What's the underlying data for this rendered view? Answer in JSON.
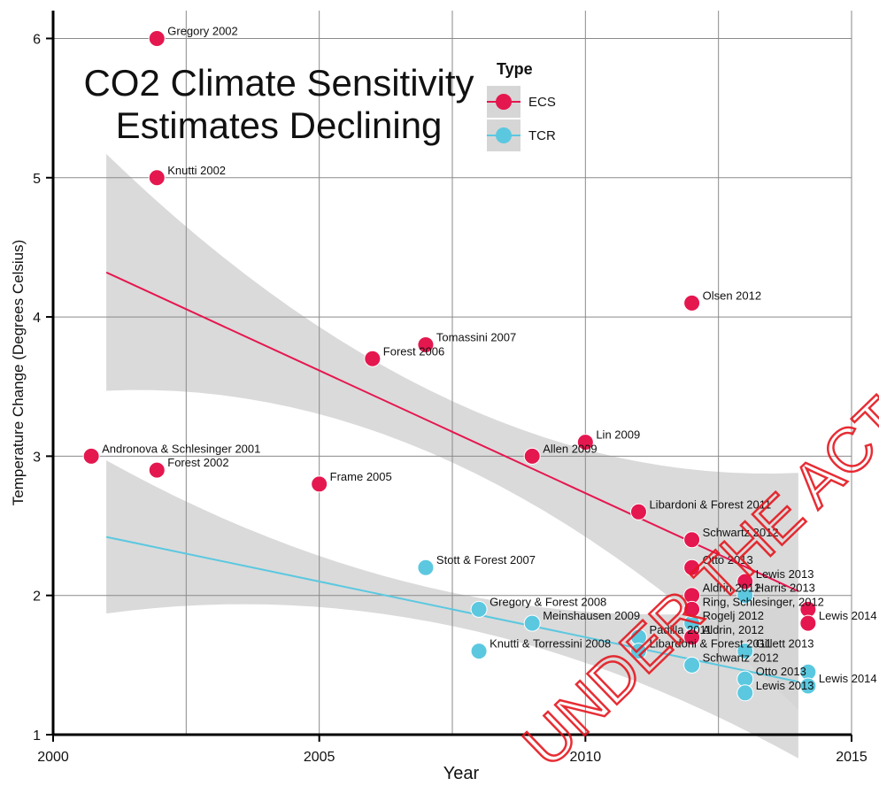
{
  "chart_data": {
    "type": "scatter",
    "title": "CO2 Climate Sensitivity Estimates Declining",
    "title_lines": [
      "CO2 Climate Sensitivity",
      "Estimates Declining"
    ],
    "xlabel": "Year",
    "ylabel": "Temperature Change (Degrees Celsius)",
    "xlim": [
      2000,
      2015
    ],
    "ylim": [
      1,
      6.2
    ],
    "xticks": [
      2000,
      2005,
      2010,
      2015
    ],
    "yticks": [
      1,
      2,
      3,
      4,
      5,
      6
    ],
    "x_gridlines": [
      2002.5,
      2007.5,
      2012.5
    ],
    "grid": true,
    "legend": {
      "title": "Type",
      "placement": "top-center"
    },
    "colors": {
      "ECS": "#e5174f",
      "TCR": "#5bc8e0",
      "band": "#d3d3d3"
    },
    "series": [
      {
        "name": "ECS",
        "points": [
          {
            "x": 2002,
            "y": 6.0,
            "label": "Gregory 2002"
          },
          {
            "x": 2002,
            "y": 5.0,
            "label": "Knutti 2002"
          },
          {
            "x": 2001,
            "y": 3.0,
            "label": "Andronova & Schlesinger 2001"
          },
          {
            "x": 2002,
            "y": 2.9,
            "label": "Forest 2002"
          },
          {
            "x": 2005,
            "y": 2.8,
            "label": "Frame 2005"
          },
          {
            "x": 2006,
            "y": 3.7,
            "label": "Forest 2006"
          },
          {
            "x": 2007,
            "y": 3.8,
            "label": "Tomassini 2007"
          },
          {
            "x": 2009,
            "y": 3.0,
            "label": "Allen 2009"
          },
          {
            "x": 2010,
            "y": 3.1,
            "label": "Lin 2009"
          },
          {
            "x": 2011,
            "y": 2.6,
            "label": "Libardoni & Forest 2011"
          },
          {
            "x": 2012,
            "y": 4.1,
            "label": "Olsen 2012"
          },
          {
            "x": 2012,
            "y": 2.4,
            "label": "Schwartz 2012"
          },
          {
            "x": 2012,
            "y": 2.2,
            "label": "Otto 2013"
          },
          {
            "x": 2012,
            "y": 2.0,
            "label": "Aldrin 2012"
          },
          {
            "x": 2012,
            "y": 1.9,
            "label": "Ring, Schlesinger, 2012"
          },
          {
            "x": 2012,
            "y": 1.7,
            "label": "Aldrin, 2012"
          },
          {
            "x": 2013,
            "y": 2.1,
            "label": "Lewis 2013"
          },
          {
            "x": 2014,
            "y": 1.9,
            "label": ""
          },
          {
            "x": 2014,
            "y": 1.8,
            "label": "Lewis 2014"
          }
        ],
        "trend": {
          "x": [
            2001,
            2014
          ],
          "y": [
            4.32,
            2.03
          ]
        }
      },
      {
        "name": "TCR",
        "points": [
          {
            "x": 2007,
            "y": 2.2,
            "label": "Stott & Forest 2007"
          },
          {
            "x": 2008,
            "y": 1.9,
            "label": "Gregory & Forest 2008"
          },
          {
            "x": 2009,
            "y": 1.8,
            "label": "Meinshausen 2009"
          },
          {
            "x": 2008,
            "y": 1.6,
            "label": "Knutti & Torressini 2008"
          },
          {
            "x": 2011,
            "y": 1.7,
            "label": "Padilla 2011"
          },
          {
            "x": 2011,
            "y": 1.6,
            "label": "Libardoni & Forest 2011"
          },
          {
            "x": 2012,
            "y": 1.8,
            "label": "Rogelj 2012"
          },
          {
            "x": 2012,
            "y": 1.5,
            "label": "Schwartz 2012"
          },
          {
            "x": 2013,
            "y": 2.0,
            "label": "Harris 2013"
          },
          {
            "x": 2013,
            "y": 1.6,
            "label": "Gillett 2013"
          },
          {
            "x": 2013,
            "y": 1.4,
            "label": "Otto 2013"
          },
          {
            "x": 2013,
            "y": 1.3,
            "label": "Lewis 2013"
          },
          {
            "x": 2014,
            "y": 1.45,
            "label": ""
          },
          {
            "x": 2014,
            "y": 1.35,
            "label": "Lewis 2014"
          }
        ],
        "trend": {
          "x": [
            2001,
            2014
          ],
          "y": [
            2.42,
            1.38
          ]
        }
      }
    ],
    "watermark": "UNDER THE ACTION ACT"
  }
}
